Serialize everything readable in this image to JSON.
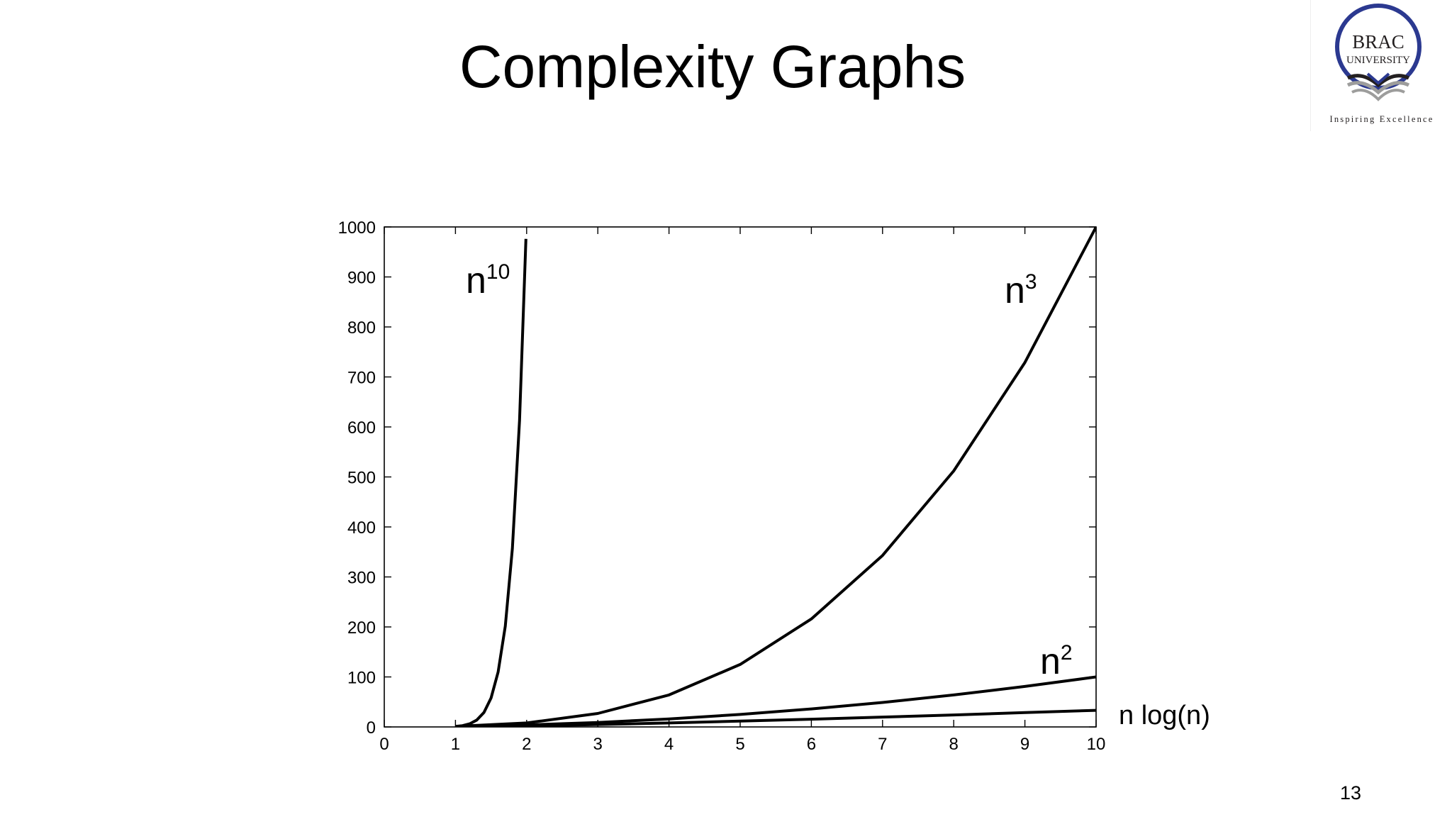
{
  "slide": {
    "title": "Complexity Graphs",
    "page_number": "13"
  },
  "logo": {
    "line1": "BRAC",
    "line2": "UNIVERSITY",
    "tagline": "Inspiring Excellence",
    "colors": {
      "ring": "#2b3990",
      "book_dark": "#231f20",
      "book_light": "#9d9d9c"
    }
  },
  "chart_data": {
    "type": "line",
    "title": "",
    "xlabel": "",
    "ylabel": "",
    "xlim": [
      0,
      10
    ],
    "ylim": [
      0,
      1000
    ],
    "xticks": [
      0,
      1,
      2,
      3,
      4,
      5,
      6,
      7,
      8,
      9,
      10
    ],
    "yticks": [
      0,
      100,
      200,
      300,
      400,
      500,
      600,
      700,
      800,
      900,
      1000
    ],
    "grid": false,
    "line_color": "#000000",
    "series": [
      {
        "id": "n10",
        "base": "n",
        "sup": "10",
        "x": [
          1,
          1.1,
          1.2,
          1.3,
          1.4,
          1.5,
          1.6,
          1.7,
          1.8,
          1.9,
          1.99
        ],
        "y": [
          1,
          2.6,
          6.2,
          13.8,
          28.9,
          57.7,
          110,
          201.6,
          357,
          613.1,
          976.2
        ]
      },
      {
        "id": "n3",
        "base": "n",
        "sup": "3",
        "x": [
          1,
          2,
          3,
          4,
          5,
          6,
          7,
          8,
          9,
          10
        ],
        "y": [
          1,
          8,
          27,
          64,
          125,
          216,
          343,
          512,
          729,
          1000
        ]
      },
      {
        "id": "n2",
        "base": "n",
        "sup": "2",
        "x": [
          1,
          2,
          3,
          4,
          5,
          6,
          7,
          8,
          9,
          10
        ],
        "y": [
          1,
          4,
          9,
          16,
          25,
          36,
          49,
          64,
          81,
          100
        ]
      },
      {
        "id": "nlogn",
        "base": "n log(n)",
        "sup": "",
        "x": [
          1,
          2,
          3,
          4,
          5,
          6,
          7,
          8,
          9,
          10
        ],
        "y": [
          0,
          2,
          4.8,
          8,
          11.6,
          15.5,
          19.7,
          24,
          28.6,
          33.2
        ]
      }
    ]
  }
}
